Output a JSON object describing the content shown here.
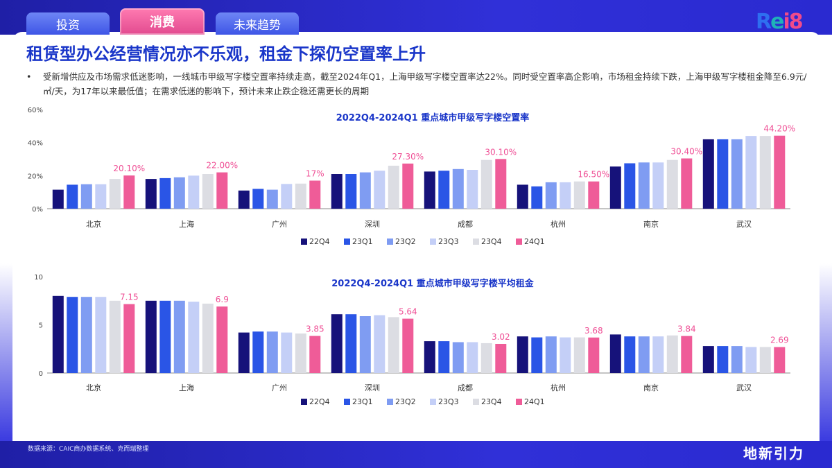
{
  "tabs": [
    {
      "label": "投资",
      "active": false
    },
    {
      "label": "消费",
      "active": true
    },
    {
      "label": "未来趋势",
      "active": false
    }
  ],
  "logo": {
    "p1": "R",
    "p2": "e",
    "p3": "i",
    "p4": "8"
  },
  "title": "租赁型办公经营情况亦不乐观，租金下探仍空置率上升",
  "bullet": "受新增供应及市场需求低迷影响，一线城市甲级写字楼空置率持续走高，截至2024年Q1，上海甲级写字楼空置率达22%。同时受空置率高企影响，市场租金持续下跌，上海甲级写字楼租金降至6.9元/㎡/天，为17年以来最低值；在需求低迷的影响下，预计未来止跌企稳还需更长的周期",
  "footer": {
    "source": "数据来源：CAIC商办数据系统、克而瑞整理",
    "brand": "地新引力"
  },
  "colors": {
    "22Q4": "#16127a",
    "23Q1": "#2a55e6",
    "23Q2": "#7f9cf2",
    "23Q3": "#c4cff7",
    "23Q4": "#dcdde3",
    "24Q1": "#ef5c98",
    "title": "#1a36c9",
    "highlight": "#ef4f95"
  },
  "chart_data": [
    {
      "type": "bar",
      "title": "2022Q4-2024Q1 重点城市甲级写字楼空置率",
      "categories": [
        "北京",
        "上海",
        "广州",
        "深圳",
        "成都",
        "杭州",
        "南京",
        "武汉"
      ],
      "y_ticks": [
        "0%",
        "20%",
        "40%",
        "60%"
      ],
      "ylim": [
        0,
        60
      ],
      "legend_position": "bottom",
      "series": [
        {
          "name": "22Q4",
          "values": [
            11.5,
            18,
            11,
            21,
            22.5,
            14.5,
            25.5,
            42
          ]
        },
        {
          "name": "23Q1",
          "values": [
            14.5,
            18.5,
            12,
            21,
            23,
            13.5,
            27.5,
            42
          ]
        },
        {
          "name": "23Q2",
          "values": [
            14.8,
            19,
            11.5,
            22,
            24,
            16,
            28,
            42
          ]
        },
        {
          "name": "23Q3",
          "values": [
            14.8,
            20,
            15,
            23,
            23.5,
            16,
            28,
            44
          ]
        },
        {
          "name": "23Q4",
          "values": [
            18,
            21,
            15.2,
            26,
            29.5,
            16.5,
            29.5,
            44
          ]
        },
        {
          "name": "24Q1",
          "values": [
            20.1,
            22,
            17,
            27.3,
            30.1,
            16.5,
            30.4,
            44.2
          ]
        }
      ],
      "data_labels": [
        "20.10%",
        "22.00%",
        "17%",
        "27.30%",
        "30.10%",
        "16.50%",
        "30.40%",
        "44.20%"
      ]
    },
    {
      "type": "bar",
      "title": "2022Q4-2024Q1 重点城市甲级写字楼平均租金",
      "categories": [
        "北京",
        "上海",
        "广州",
        "深圳",
        "成都",
        "杭州",
        "南京",
        "武汉"
      ],
      "y_ticks": [
        "0",
        "5",
        "10"
      ],
      "ylim": [
        0,
        10
      ],
      "legend_position": "bottom",
      "series": [
        {
          "name": "22Q4",
          "values": [
            8.0,
            7.5,
            4.2,
            6.1,
            3.3,
            3.8,
            4.0,
            2.8
          ]
        },
        {
          "name": "23Q1",
          "values": [
            7.9,
            7.5,
            4.3,
            6.1,
            3.3,
            3.7,
            3.8,
            2.8
          ]
        },
        {
          "name": "23Q2",
          "values": [
            7.9,
            7.5,
            4.3,
            5.9,
            3.2,
            3.8,
            3.8,
            2.8
          ]
        },
        {
          "name": "23Q3",
          "values": [
            7.9,
            7.4,
            4.2,
            6.0,
            3.2,
            3.7,
            3.8,
            2.7
          ]
        },
        {
          "name": "23Q4",
          "values": [
            7.5,
            7.2,
            4.1,
            5.8,
            3.1,
            3.7,
            3.9,
            2.7
          ]
        },
        {
          "name": "24Q1",
          "values": [
            7.15,
            6.9,
            3.85,
            5.64,
            3.02,
            3.68,
            3.84,
            2.69
          ]
        }
      ],
      "data_labels": [
        "7.15",
        "6.9",
        "3.85",
        "5.64",
        "3.02",
        "3.68",
        "3.84",
        "2.69"
      ]
    }
  ]
}
